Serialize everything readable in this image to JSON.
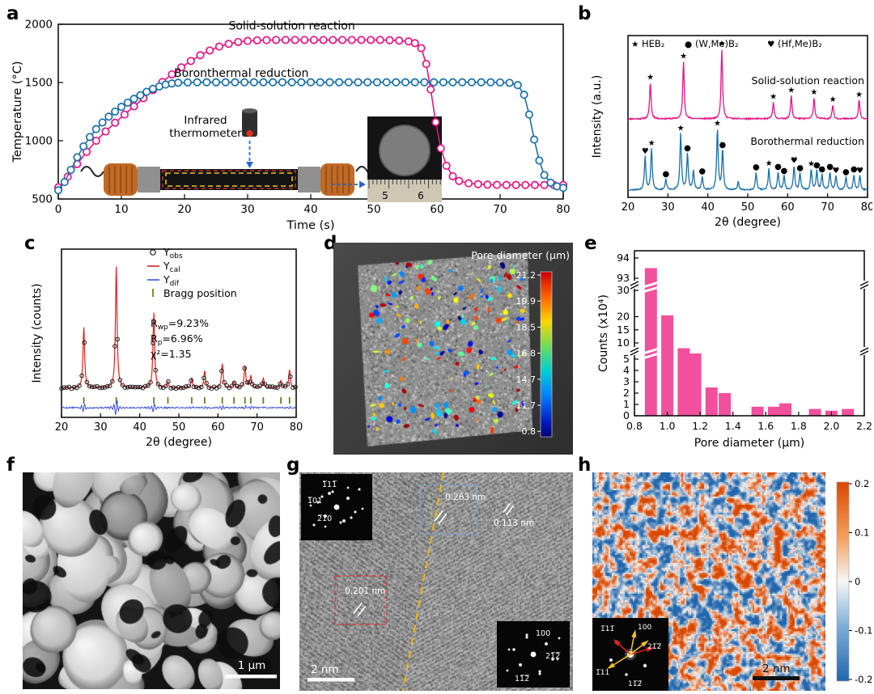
{
  "panels": {
    "a": {
      "label": "a",
      "inset": {
        "thermometer_label_line1": "Infrared",
        "thermometer_label_line2": "thermometer",
        "ruler_numbers": [
          "5",
          "6"
        ]
      }
    },
    "b": {
      "label": "b"
    },
    "c": {
      "label": "c"
    },
    "d": {
      "label": "d"
    },
    "e": {
      "label": "e"
    },
    "f": {
      "label": "f",
      "scale_bar": "1 μm"
    },
    "g": {
      "label": "g",
      "scale_bar": "2 nm",
      "d_spacings": [
        "0.263 nm",
        "0.113 nm",
        "0.201 nm"
      ],
      "fft_top_left": [
        "1̅11̅",
        "1̅01",
        "2̅10"
      ],
      "fft_bottom_right": [
        "100",
        "21̅2̅",
        "11̅2̅"
      ]
    },
    "h": {
      "label": "h",
      "scale_bar": "2 nm",
      "fft_labels": [
        "1̅11̅",
        "100",
        "21̅2̅",
        "1̅11",
        "11̅2̅"
      ]
    }
  },
  "chart_data": [
    {
      "id": "a",
      "type": "line",
      "xlabel": "Time (s)",
      "ylabel": "Temperature (°C)",
      "xlim": [
        0,
        80
      ],
      "ylim": [
        500,
        2000
      ],
      "xticks": [
        0,
        10,
        20,
        30,
        40,
        50,
        60,
        70,
        80
      ],
      "yticks": [
        500,
        1000,
        1500,
        2000
      ],
      "series": [
        {
          "name": "Solid-solution reaction",
          "color": "#e61384",
          "label_pos": [
            37,
            1955
          ],
          "points": [
            [
              0,
              600
            ],
            [
              1.5,
              690
            ],
            [
              3,
              800
            ],
            [
              4.5,
              905
            ],
            [
              6,
              1000
            ],
            [
              7.5,
              1080
            ],
            [
              9,
              1155
            ],
            [
              10.5,
              1225
            ],
            [
              12,
              1295
            ],
            [
              13.5,
              1365
            ],
            [
              15,
              1435
            ],
            [
              16.5,
              1505
            ],
            [
              18,
              1570
            ],
            [
              19.5,
              1630
            ],
            [
              21,
              1685
            ],
            [
              22.5,
              1735
            ],
            [
              24,
              1775
            ],
            [
              25.5,
              1808
            ],
            [
              27,
              1832
            ],
            [
              28.5,
              1848
            ],
            [
              30,
              1857
            ],
            [
              31.5,
              1862
            ],
            [
              33,
              1864
            ],
            [
              34.5,
              1865
            ],
            [
              36,
              1865
            ],
            [
              37.5,
              1865
            ],
            [
              39,
              1865
            ],
            [
              40.5,
              1865
            ],
            [
              42,
              1865
            ],
            [
              43.5,
              1865
            ],
            [
              45,
              1865
            ],
            [
              46.5,
              1865
            ],
            [
              48,
              1865
            ],
            [
              49.5,
              1865
            ],
            [
              51,
              1865
            ],
            [
              52.5,
              1863
            ],
            [
              54,
              1860
            ],
            [
              55.5,
              1853
            ],
            [
              56.5,
              1838
            ],
            [
              57.5,
              1795
            ],
            [
              58.3,
              1660
            ],
            [
              59,
              1440
            ],
            [
              59.8,
              1160
            ],
            [
              60.6,
              935
            ],
            [
              61.5,
              785
            ],
            [
              62.5,
              695
            ],
            [
              63.5,
              655
            ],
            [
              65,
              635
            ],
            [
              66.5,
              627
            ],
            [
              68,
              623
            ],
            [
              69.5,
              621
            ],
            [
              71,
              620
            ],
            [
              72.5,
              620
            ],
            [
              74,
              620
            ],
            [
              75.5,
              620
            ],
            [
              77,
              620
            ],
            [
              78.5,
              620
            ],
            [
              80,
              620
            ]
          ]
        },
        {
          "name": "Boronthermal reduction",
          "color": "#1a6ea6",
          "label_pos": [
            29,
            1548
          ],
          "points": [
            [
              0,
              575
            ],
            [
              1,
              645
            ],
            [
              2,
              750
            ],
            [
              3,
              858
            ],
            [
              4,
              952
            ],
            [
              5,
              1032
            ],
            [
              6,
              1100
            ],
            [
              7,
              1157
            ],
            [
              8,
              1207
            ],
            [
              9,
              1251
            ],
            [
              10,
              1291
            ],
            [
              11,
              1327
            ],
            [
              12,
              1360
            ],
            [
              13,
              1391
            ],
            [
              14,
              1420
            ],
            [
              15,
              1446
            ],
            [
              16,
              1466
            ],
            [
              17,
              1482
            ],
            [
              18,
              1492
            ],
            [
              19,
              1498
            ],
            [
              20.5,
              1501
            ],
            [
              22,
              1502
            ],
            [
              23.5,
              1502
            ],
            [
              25,
              1502
            ],
            [
              26.5,
              1502
            ],
            [
              28,
              1502
            ],
            [
              29.5,
              1502
            ],
            [
              31,
              1502
            ],
            [
              32.5,
              1502
            ],
            [
              34,
              1502
            ],
            [
              35.5,
              1502
            ],
            [
              37,
              1502
            ],
            [
              38.5,
              1502
            ],
            [
              40,
              1502
            ],
            [
              41.5,
              1502
            ],
            [
              43,
              1502
            ],
            [
              44.5,
              1502
            ],
            [
              46,
              1502
            ],
            [
              47.5,
              1502
            ],
            [
              49,
              1502
            ],
            [
              50.5,
              1502
            ],
            [
              52,
              1502
            ],
            [
              53.5,
              1502
            ],
            [
              55,
              1502
            ],
            [
              56.5,
              1502
            ],
            [
              58,
              1502
            ],
            [
              59.5,
              1502
            ],
            [
              61,
              1502
            ],
            [
              62.5,
              1502
            ],
            [
              64,
              1502
            ],
            [
              65.5,
              1502
            ],
            [
              67,
              1502
            ],
            [
              68.5,
              1502
            ],
            [
              70,
              1501
            ],
            [
              71.5,
              1497
            ],
            [
              72.8,
              1478
            ],
            [
              73.8,
              1395
            ],
            [
              74.6,
              1225
            ],
            [
              75.4,
              1010
            ],
            [
              76.2,
              830
            ],
            [
              77,
              705
            ],
            [
              78,
              640
            ],
            [
              79,
              608
            ],
            [
              80,
              596
            ]
          ]
        }
      ]
    },
    {
      "id": "b",
      "type": "xrd",
      "xlabel": "2θ (degree)",
      "ylabel": "Intensity (a.u.)",
      "xlim": [
        20,
        80
      ],
      "xticks": [
        20,
        30,
        40,
        50,
        60,
        70,
        80
      ],
      "legend": [
        {
          "marker": "★",
          "label": "HEB₂"
        },
        {
          "marker": "●",
          "label": "(W,Me)B₂"
        },
        {
          "marker": "♥",
          "label": "(Hf,Me)B₂"
        }
      ],
      "series": [
        {
          "name": "Solid-solution reaction",
          "color": "#e61384",
          "peaks": [
            [
              25.6,
              0.52,
              "★"
            ],
            [
              33.9,
              0.82,
              "★"
            ],
            [
              43.5,
              1.0,
              "★"
            ],
            [
              56.4,
              0.24,
              "★"
            ],
            [
              60.9,
              0.33,
              "★"
            ],
            [
              66.6,
              0.3,
              "★"
            ],
            [
              71.3,
              0.2,
              "★"
            ],
            [
              77.9,
              0.27,
              "★"
            ]
          ]
        },
        {
          "name": "Borothermal reduction",
          "color": "#1a6ea6",
          "peaks": [
            [
              24.3,
              0.5,
              "♥"
            ],
            [
              25.9,
              0.62,
              "★"
            ],
            [
              29.5,
              0.16,
              "●"
            ],
            [
              33.2,
              0.85,
              "★"
            ],
            [
              34.9,
              0.55,
              "●"
            ],
            [
              36.4,
              0.28,
              ""
            ],
            [
              38.6,
              0.2,
              "●"
            ],
            [
              42.4,
              0.92,
              "★"
            ],
            [
              43.7,
              0.6,
              "●"
            ],
            [
              47.6,
              0.12,
              ""
            ],
            [
              52.1,
              0.26,
              "●"
            ],
            [
              55.3,
              0.32,
              "★"
            ],
            [
              57.6,
              0.27,
              "●"
            ],
            [
              59.1,
              0.21,
              "●"
            ],
            [
              61.6,
              0.36,
              "♥"
            ],
            [
              63.1,
              0.25,
              "●"
            ],
            [
              65.9,
              0.31,
              "★"
            ],
            [
              67.3,
              0.29,
              "●"
            ],
            [
              68.6,
              0.23,
              "●"
            ],
            [
              70.6,
              0.27,
              "●"
            ],
            [
              72.1,
              0.21,
              "♥"
            ],
            [
              74.6,
              0.19,
              "●"
            ],
            [
              76.6,
              0.23,
              "●"
            ],
            [
              78.1,
              0.21,
              "♥"
            ]
          ]
        }
      ]
    },
    {
      "id": "c",
      "type": "rietveld",
      "xlabel": "2θ (degree)",
      "ylabel": "Intensity (counts)",
      "xlim": [
        20,
        80
      ],
      "xticks": [
        20,
        30,
        40,
        50,
        60,
        70,
        80
      ],
      "legend": [
        {
          "sym": "obs",
          "main": "Y",
          "sub": "obs"
        },
        {
          "sym": "cal",
          "main": "Y",
          "sub": "cal"
        },
        {
          "sym": "dif",
          "main": "Y",
          "sub": "dif"
        },
        {
          "sym": "bragg",
          "main": "Bragg position"
        }
      ],
      "stats": [
        {
          "main": "R",
          "sub": "wp",
          "rest": "=9.23%"
        },
        {
          "main": "R",
          "sub": "p",
          "rest": "=6.96%"
        },
        {
          "main": "χ²=1.35"
        }
      ],
      "colors": {
        "obs": "#1a1a1a",
        "cal": "#e02020",
        "dif": "#3a50d9",
        "bragg": "#5d7a1a"
      },
      "peaks": [
        [
          25.7,
          0.5
        ],
        [
          34.0,
          1.0
        ],
        [
          43.6,
          0.62
        ],
        [
          47.2,
          0.05
        ],
        [
          53.3,
          0.08
        ],
        [
          56.6,
          0.14
        ],
        [
          61.1,
          0.2
        ],
        [
          64.1,
          0.05
        ],
        [
          66.9,
          0.18
        ],
        [
          68.4,
          0.1
        ],
        [
          71.6,
          0.08
        ],
        [
          76.1,
          0.06
        ],
        [
          78.3,
          0.15
        ]
      ],
      "bragg": [
        25.7,
        34.0,
        43.6,
        47.2,
        53.3,
        56.6,
        61.1,
        64.1,
        66.9,
        68.4,
        71.6,
        76.1,
        78.3
      ]
    },
    {
      "id": "d",
      "type": "volume-render",
      "colorbar_title": "Pore diameter (μm)",
      "colorbar_ticks": [
        "21.2",
        "19.9",
        "18.5",
        "16.8",
        "14.7",
        "11.7",
        "0.8"
      ],
      "colormap": "jet"
    },
    {
      "id": "e",
      "type": "bar",
      "xlabel": "Pore diameter (μm)",
      "ylabel": "Counts (x10⁴)",
      "xlim": [
        0.8,
        2.2
      ],
      "xticks": [
        0.8,
        1.0,
        1.2,
        1.4,
        1.6,
        1.8,
        2.0,
        2.2
      ],
      "yticks": [
        0,
        1,
        2,
        3,
        4,
        5,
        10,
        15,
        20,
        30,
        93,
        94
      ],
      "bar_color": "#f2509d",
      "bars": [
        [
          0.9,
          93.5
        ],
        [
          1.0,
          20.5
        ],
        [
          1.1,
          8
        ],
        [
          1.17,
          6
        ],
        [
          1.27,
          2.5
        ],
        [
          1.35,
          2
        ],
        [
          1.55,
          0.8
        ],
        [
          1.65,
          0.8
        ],
        [
          1.72,
          1.1
        ],
        [
          1.9,
          0.6
        ],
        [
          2.0,
          0.45
        ],
        [
          2.1,
          0.6
        ]
      ]
    },
    {
      "id": "h",
      "type": "heatmap",
      "range": [
        -0.2,
        0.2
      ],
      "colormap": "coolwarm",
      "colorbar_ticks": [
        "0.2",
        "0.1",
        "0",
        "-0.1",
        "-0.2"
      ]
    }
  ]
}
